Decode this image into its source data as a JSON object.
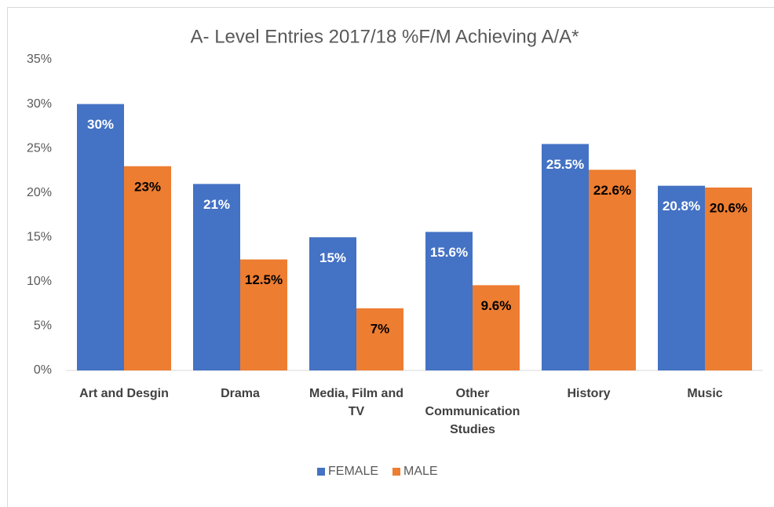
{
  "chart_data": {
    "type": "bar",
    "title": "A- Level Entries 2017/18 %F/M Achieving A/A*",
    "categories": [
      "Art and Desgin",
      "Drama",
      "Media, Film and TV",
      "Other Communication Studies",
      "History",
      "Music"
    ],
    "series": [
      {
        "name": "FEMALE",
        "color": "#4472c4",
        "label_color": "#ffffff",
        "values": [
          30,
          21,
          15,
          15.6,
          25.5,
          20.8
        ],
        "value_labels": [
          "30%",
          "21%",
          "15%",
          "15.6%",
          "25.5%",
          "20.8%"
        ]
      },
      {
        "name": "MALE",
        "color": "#ed7d31",
        "label_color": "#000000",
        "values": [
          23,
          12.5,
          7,
          9.6,
          22.6,
          20.6
        ],
        "value_labels": [
          "23%",
          "12.5%",
          "7%",
          "9.6%",
          "22.6%",
          "20.6%"
        ]
      }
    ],
    "ylim": [
      0,
      35
    ],
    "yticks": [
      {
        "value": 0,
        "label": "0%"
      },
      {
        "value": 5,
        "label": "5%"
      },
      {
        "value": 10,
        "label": "10%"
      },
      {
        "value": 15,
        "label": "15%"
      },
      {
        "value": 20,
        "label": "20%"
      },
      {
        "value": 25,
        "label": "25%"
      },
      {
        "value": 30,
        "label": "30%"
      },
      {
        "value": 35,
        "label": "35%"
      }
    ],
    "grid": false,
    "legend": "bottom"
  }
}
